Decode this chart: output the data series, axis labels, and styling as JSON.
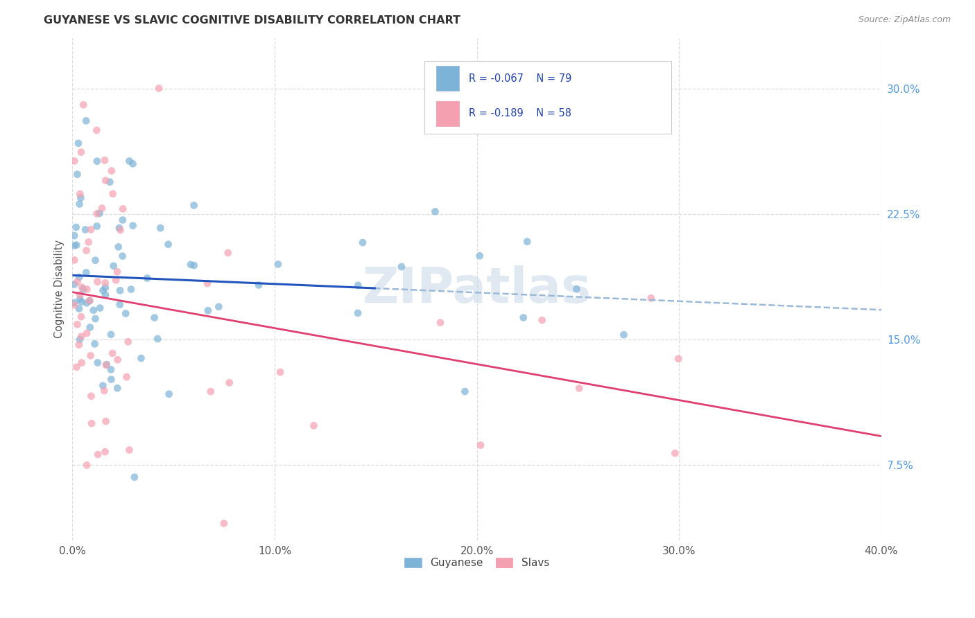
{
  "title": "GUYANESE VS SLAVIC COGNITIVE DISABILITY CORRELATION CHART",
  "source": "Source: ZipAtlas.com",
  "ylabel": "Cognitive Disability",
  "ytick_labels": [
    "7.5%",
    "15.0%",
    "22.5%",
    "30.0%"
  ],
  "ytick_values": [
    0.075,
    0.15,
    0.225,
    0.3
  ],
  "xtick_labels": [
    "0.0%",
    "10.0%",
    "20.0%",
    "30.0%",
    "40.0%"
  ],
  "xtick_values": [
    0.0,
    0.1,
    0.2,
    0.3,
    0.4
  ],
  "xlim": [
    0.0,
    0.4
  ],
  "ylim": [
    0.03,
    0.33
  ],
  "guyanese_color": "#7EB3D8",
  "slavic_color": "#F4A0B0",
  "trend_blue": "#2255BB",
  "trend_pink": "#E04070",
  "trend_dash_color": "#9BB8D8",
  "watermark": "ZIPatlas",
  "watermark_color": "#C8D8E8",
  "guyanese_R": -0.067,
  "guyanese_N": 79,
  "slavic_R": -0.189,
  "slavic_N": 58,
  "legend_R1": "R = -0.067",
  "legend_N1": "N = 79",
  "legend_R2": "R = -0.189",
  "legend_N2": "N = 58",
  "bg_color": "#FFFFFF",
  "grid_color": "#DDDDDD",
  "ytick_color": "#5599DD",
  "title_color": "#333333",
  "source_color": "#888888",
  "ylabel_color": "#555555",
  "xtick_color": "#555555"
}
